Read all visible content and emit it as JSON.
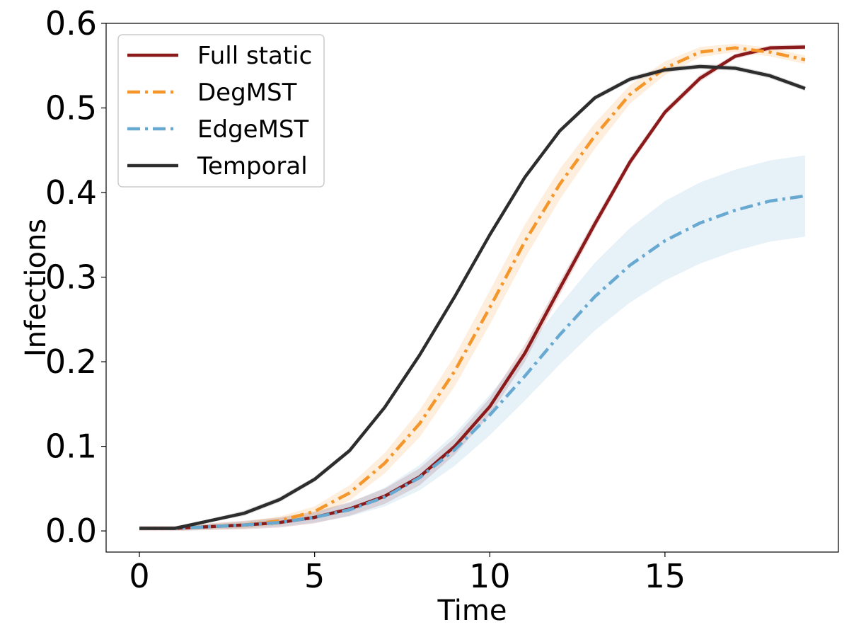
{
  "chart_data": {
    "type": "line",
    "title": "",
    "xlabel": "Time",
    "ylabel": "Infections",
    "xlim": [
      -0.95,
      19.95
    ],
    "ylim": [
      -0.025,
      0.6
    ],
    "xticks": [
      "0",
      "5",
      "10",
      "15"
    ],
    "xtick_values": [
      0,
      5,
      10,
      15
    ],
    "yticks": [
      "0.0",
      "0.1",
      "0.2",
      "0.3",
      "0.4",
      "0.5",
      "0.6"
    ],
    "ytick_values": [
      0.0,
      0.1,
      0.2,
      0.3,
      0.4,
      0.5,
      0.6
    ],
    "grid": false,
    "legend_position": "upper-left",
    "x": [
      0,
      1,
      2,
      3,
      4,
      5,
      6,
      7,
      8,
      9,
      10,
      11,
      12,
      13,
      14,
      15,
      16,
      17,
      18,
      19
    ],
    "series": [
      {
        "name": "Full static",
        "color": "#8b1a1a",
        "dash": "solid",
        "values": [
          0.003,
          0.003,
          0.005,
          0.007,
          0.01,
          0.016,
          0.026,
          0.041,
          0.064,
          0.1,
          0.147,
          0.21,
          0.287,
          0.363,
          0.436,
          0.495,
          0.535,
          0.561,
          0.571,
          0.572
        ],
        "band": [
          0.003,
          0.003,
          0.004,
          0.005,
          0.006,
          0.007,
          0.008,
          0.009,
          0.01,
          0.01,
          0.01,
          0.01,
          0.008,
          0.006,
          0.005,
          0.004,
          0.004,
          0.003,
          0.003,
          0.003
        ]
      },
      {
        "name": "DegMST",
        "color": "#f5962a",
        "dash": "dashdot",
        "values": [
          0.003,
          0.003,
          0.005,
          0.007,
          0.012,
          0.023,
          0.045,
          0.08,
          0.127,
          0.189,
          0.264,
          0.342,
          0.41,
          0.467,
          0.516,
          0.547,
          0.566,
          0.571,
          0.566,
          0.557
        ],
        "band": [
          0.002,
          0.002,
          0.003,
          0.004,
          0.005,
          0.006,
          0.009,
          0.012,
          0.016,
          0.018,
          0.02,
          0.02,
          0.018,
          0.015,
          0.011,
          0.008,
          0.006,
          0.005,
          0.005,
          0.005
        ]
      },
      {
        "name": "EdgeMST",
        "color": "#67a9d1",
        "dash": "dashdot",
        "values": [
          0.003,
          0.003,
          0.005,
          0.007,
          0.01,
          0.016,
          0.025,
          0.04,
          0.063,
          0.096,
          0.137,
          0.183,
          0.232,
          0.277,
          0.314,
          0.343,
          0.364,
          0.379,
          0.39,
          0.396
        ],
        "band": [
          0.002,
          0.002,
          0.003,
          0.004,
          0.005,
          0.006,
          0.008,
          0.011,
          0.015,
          0.019,
          0.024,
          0.029,
          0.035,
          0.04,
          0.044,
          0.047,
          0.048,
          0.048,
          0.048,
          0.048
        ]
      },
      {
        "name": "Temporal",
        "color": "#2d2d2d",
        "dash": "solid",
        "values": [
          0.003,
          0.003,
          0.012,
          0.021,
          0.037,
          0.061,
          0.095,
          0.146,
          0.208,
          0.277,
          0.35,
          0.418,
          0.473,
          0.512,
          0.534,
          0.545,
          0.549,
          0.547,
          0.538,
          0.523
        ],
        "band": [
          0.002,
          0.002,
          0.002,
          0.003,
          0.003,
          0.003,
          0.003,
          0.003,
          0.003,
          0.003,
          0.003,
          0.003,
          0.003,
          0.003,
          0.003,
          0.003,
          0.003,
          0.003,
          0.003,
          0.003
        ]
      }
    ]
  }
}
